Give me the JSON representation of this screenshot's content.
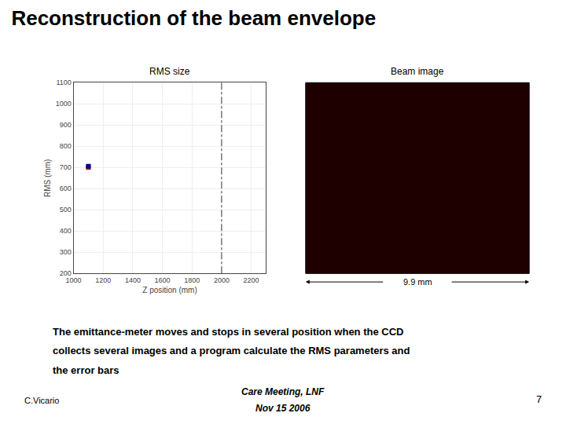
{
  "chart_data": {
    "type": "scatter",
    "title": "Reconstruction of the beam envelope",
    "x_label": "Z position (mm)",
    "y_label": "RMS (mm)",
    "xlim": [
      1000,
      2300
    ],
    "ylim": [
      200,
      1100
    ],
    "xticks": [
      1000,
      1200,
      1400,
      1600,
      1800,
      2000,
      2200
    ],
    "yticks": [
      200,
      300,
      400,
      500,
      600,
      700,
      800,
      900,
      1000,
      1100
    ],
    "grid": true,
    "series": [
      {
        "type": "vline",
        "x": [
          2000
        ],
        "color": "#555555",
        "line_style": "dashdot"
      },
      {
        "type": "scatter",
        "x": [
          1100
        ],
        "values": [
          700
        ],
        "color": "#cc0000",
        "marker": "square"
      },
      {
        "type": "scatter",
        "x": [
          1100
        ],
        "values": [
          706
        ],
        "color": "#000099",
        "marker": "square"
      }
    ],
    "annotations": [
      "RMS size",
      "Beam image",
      "9.9 mm",
      "The emittance-meter moves and stops in several position when the CCD",
      "collects several images and a program calculate the RMS parameters and",
      "the error bars",
      "C.Vicario",
      "Care Meeting, LNF",
      "Nov 15 2006",
      "7"
    ]
  }
}
